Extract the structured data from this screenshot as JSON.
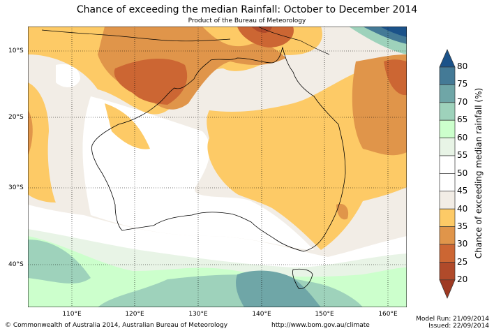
{
  "title": "Chance of exceeding the median Rainfall: October to December 2014",
  "subtitle": "Product of the Bureau of Meteorology",
  "map": {
    "lat_labels": [
      "10°S",
      "20°S",
      "30°S",
      "40°S"
    ],
    "lon_labels": [
      "110°E",
      "120°E",
      "130°E",
      "140°E",
      "150°E",
      "160°E"
    ],
    "extent": {
      "lon": [
        103,
        163
      ],
      "lat": [
        -6.5,
        -45.5
      ]
    }
  },
  "colorbar": {
    "title": "Chance of exceeding median rainfall (%)",
    "ticks": [
      "80",
      "75",
      "70",
      "65",
      "60",
      "55",
      "50",
      "45",
      "40",
      "35",
      "30",
      "25",
      "20"
    ],
    "colors": {
      "over": "#1b5289",
      "75-80": "#447a96",
      "70-75": "#6fa6a7",
      "65-70": "#9ed2bb",
      "60-65": "#ccffcc",
      "55-60": "#e8f4e6",
      "50-55": "#ffffff",
      "45-50": "#ffffff",
      "40-45": "#f2ede6",
      "35-40": "#fdca66",
      "30-35": "#e0954a",
      "25-30": "#cc6633",
      "20-25": "#b04a2a",
      "under": "#9e3a23"
    }
  },
  "footer": {
    "copyright": "© Commonwealth of Australia 2014, Australian Bureau of Meteorology",
    "url": "http://www.bom.gov.au/climate",
    "model_run": "Model Run: 21/09/2014",
    "issued": "Issued: 22/09/2014"
  }
}
